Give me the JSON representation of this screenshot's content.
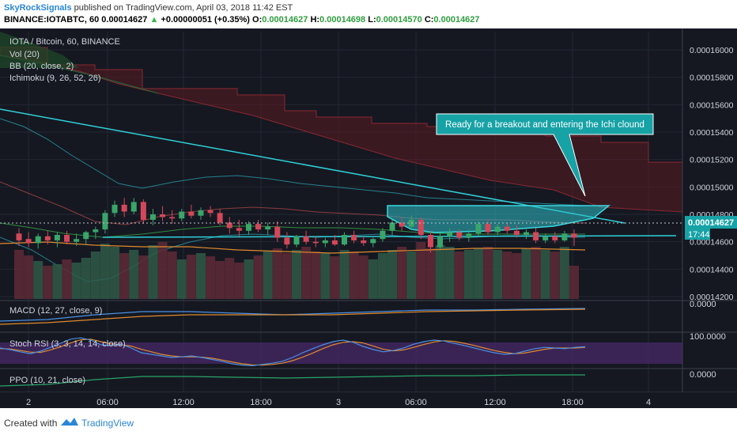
{
  "header": {
    "author": "SkyRockSignals",
    "published_text": "published on TradingView.com, April 03, 2018 11:42 EST",
    "symbol": "BINANCE:IOTABTC, 60",
    "price": "0.00014627",
    "change_arrow": "▲",
    "change": "+0.00000051 (+0.35%)",
    "o_label": "O:",
    "o_value": "0.00014627",
    "h_label": "H:",
    "h_value": "0.00014698",
    "l_label": "L:",
    "l_value": "0.00014570",
    "c_label": "C:",
    "c_value": "0.00014627"
  },
  "footer": {
    "created_with": "Created with",
    "brand": "TradingView"
  },
  "chart_data": {
    "type": "candlestick",
    "title": "IOTA / Bitcoin, 60, BINANCE",
    "indicators": [
      "Vol (20)",
      "BB (20, close, 2)",
      "Ichimoku (9, 26, 52, 26)"
    ],
    "y_ticks": [
      0.00016,
      0.000158,
      0.000156,
      0.000154,
      0.000152,
      0.00015,
      0.000148,
      0.000146,
      0.000144,
      0.000142
    ],
    "y_tick_labels": [
      "0.00016000",
      "0.00015800",
      "0.00015600",
      "0.00015400",
      "0.00015200",
      "0.00015000",
      "0.00014800",
      "0.00014600",
      "0.00014400",
      "0.00014200"
    ],
    "ylim": [
      0.0001415,
      0.0001615
    ],
    "x_tick_labels": [
      "2",
      "06:00",
      "12:00",
      "18:00",
      "3",
      "06:00",
      "12:00",
      "18:00",
      "4"
    ],
    "last_price_label": "0.00014627",
    "countdown_label": "17:44",
    "annotation": "Ready for a breakout and entering the Ichi clound",
    "candles": [
      {
        "o": 0.0001466,
        "h": 0.000147,
        "l": 0.0001457,
        "c": 0.0001461
      },
      {
        "o": 0.0001462,
        "h": 0.0001467,
        "l": 0.0001456,
        "c": 0.0001459
      },
      {
        "o": 0.0001459,
        "h": 0.0001466,
        "l": 0.0001455,
        "c": 0.0001464
      },
      {
        "o": 0.0001464,
        "h": 0.0001468,
        "l": 0.0001458,
        "c": 0.0001461
      },
      {
        "o": 0.0001461,
        "h": 0.0001467,
        "l": 0.0001456,
        "c": 0.0001465
      },
      {
        "o": 0.0001465,
        "h": 0.0001468,
        "l": 0.0001458,
        "c": 0.000146
      },
      {
        "o": 0.000146,
        "h": 0.0001466,
        "l": 0.0001457,
        "c": 0.0001462
      },
      {
        "o": 0.0001462,
        "h": 0.0001468,
        "l": 0.0001458,
        "c": 0.0001467
      },
      {
        "o": 0.0001467,
        "h": 0.0001471,
        "l": 0.0001462,
        "c": 0.0001469
      },
      {
        "o": 0.0001469,
        "h": 0.0001483,
        "l": 0.0001466,
        "c": 0.0001481
      },
      {
        "o": 0.0001481,
        "h": 0.000149,
        "l": 0.0001478,
        "c": 0.0001487
      },
      {
        "o": 0.0001487,
        "h": 0.0001492,
        "l": 0.0001478,
        "c": 0.0001482
      },
      {
        "o": 0.0001482,
        "h": 0.0001492,
        "l": 0.000148,
        "c": 0.0001489
      },
      {
        "o": 0.0001489,
        "h": 0.0001491,
        "l": 0.0001473,
        "c": 0.0001476
      },
      {
        "o": 0.0001476,
        "h": 0.0001484,
        "l": 0.0001472,
        "c": 0.000148
      },
      {
        "o": 0.000148,
        "h": 0.0001486,
        "l": 0.0001475,
        "c": 0.0001478
      },
      {
        "o": 0.0001478,
        "h": 0.0001483,
        "l": 0.0001473,
        "c": 0.0001477
      },
      {
        "o": 0.0001477,
        "h": 0.0001484,
        "l": 0.0001475,
        "c": 0.0001482
      },
      {
        "o": 0.0001482,
        "h": 0.0001487,
        "l": 0.0001477,
        "c": 0.0001479
      },
      {
        "o": 0.0001479,
        "h": 0.0001485,
        "l": 0.0001476,
        "c": 0.0001483
      },
      {
        "o": 0.0001483,
        "h": 0.0001486,
        "l": 0.0001478,
        "c": 0.0001481
      },
      {
        "o": 0.0001481,
        "h": 0.0001484,
        "l": 0.0001472,
        "c": 0.0001474
      },
      {
        "o": 0.0001474,
        "h": 0.0001478,
        "l": 0.0001466,
        "c": 0.000147
      },
      {
        "o": 0.000147,
        "h": 0.0001476,
        "l": 0.0001464,
        "c": 0.0001468
      },
      {
        "o": 0.0001468,
        "h": 0.0001475,
        "l": 0.0001465,
        "c": 0.0001473
      },
      {
        "o": 0.0001473,
        "h": 0.0001476,
        "l": 0.0001467,
        "c": 0.0001469
      },
      {
        "o": 0.0001469,
        "h": 0.0001474,
        "l": 0.0001465,
        "c": 0.0001471
      },
      {
        "o": 0.0001471,
        "h": 0.0001475,
        "l": 0.000146,
        "c": 0.0001463
      },
      {
        "o": 0.0001463,
        "h": 0.0001467,
        "l": 0.0001455,
        "c": 0.0001458
      },
      {
        "o": 0.0001458,
        "h": 0.0001465,
        "l": 0.0001456,
        "c": 0.0001464
      },
      {
        "o": 0.0001464,
        "h": 0.0001468,
        "l": 0.0001458,
        "c": 0.000146
      },
      {
        "o": 0.000146,
        "h": 0.0001464,
        "l": 0.0001456,
        "c": 0.0001459
      },
      {
        "o": 0.0001459,
        "h": 0.0001463,
        "l": 0.0001456,
        "c": 0.0001461
      },
      {
        "o": 0.0001461,
        "h": 0.0001465,
        "l": 0.0001457,
        "c": 0.0001458
      },
      {
        "o": 0.0001458,
        "h": 0.0001467,
        "l": 0.0001457,
        "c": 0.0001465
      },
      {
        "o": 0.0001465,
        "h": 0.0001468,
        "l": 0.0001459,
        "c": 0.0001461
      },
      {
        "o": 0.0001461,
        "h": 0.0001464,
        "l": 0.0001457,
        "c": 0.0001459
      },
      {
        "o": 0.0001459,
        "h": 0.0001463,
        "l": 0.0001456,
        "c": 0.0001462
      },
      {
        "o": 0.0001462,
        "h": 0.000147,
        "l": 0.000146,
        "c": 0.0001468
      },
      {
        "o": 0.0001468,
        "h": 0.0001476,
        "l": 0.0001465,
        "c": 0.0001474
      },
      {
        "o": 0.0001474,
        "h": 0.0001478,
        "l": 0.0001468,
        "c": 0.0001471
      },
      {
        "o": 0.0001471,
        "h": 0.0001479,
        "l": 0.0001469,
        "c": 0.0001476
      },
      {
        "o": 0.0001476,
        "h": 0.0001478,
        "l": 0.0001462,
        "c": 0.0001465
      },
      {
        "o": 0.0001465,
        "h": 0.0001468,
        "l": 0.0001452,
        "c": 0.0001456
      },
      {
        "o": 0.0001456,
        "h": 0.0001466,
        "l": 0.0001455,
        "c": 0.0001464
      },
      {
        "o": 0.0001464,
        "h": 0.000147,
        "l": 0.000146,
        "c": 0.0001467
      },
      {
        "o": 0.0001467,
        "h": 0.0001469,
        "l": 0.0001461,
        "c": 0.0001463
      },
      {
        "o": 0.0001463,
        "h": 0.0001469,
        "l": 0.000146,
        "c": 0.0001466
      },
      {
        "o": 0.0001466,
        "h": 0.0001475,
        "l": 0.0001464,
        "c": 0.0001473
      },
      {
        "o": 0.0001473,
        "h": 0.0001476,
        "l": 0.0001465,
        "c": 0.0001467
      },
      {
        "o": 0.0001467,
        "h": 0.0001473,
        "l": 0.0001465,
        "c": 0.0001471
      },
      {
        "o": 0.0001471,
        "h": 0.0001474,
        "l": 0.0001466,
        "c": 0.0001468
      },
      {
        "o": 0.0001468,
        "h": 0.0001472,
        "l": 0.0001463,
        "c": 0.0001465
      },
      {
        "o": 0.0001465,
        "h": 0.0001469,
        "l": 0.0001462,
        "c": 0.0001467
      },
      {
        "o": 0.0001467,
        "h": 0.000147,
        "l": 0.0001459,
        "c": 0.0001461
      },
      {
        "o": 0.0001461,
        "h": 0.0001466,
        "l": 0.0001459,
        "c": 0.0001464
      },
      {
        "o": 0.0001464,
        "h": 0.0001467,
        "l": 0.0001459,
        "c": 0.0001461
      },
      {
        "o": 0.0001461,
        "h": 0.0001468,
        "l": 0.000146,
        "c": 0.0001466
      },
      {
        "o": 0.0001466,
        "h": 0.0001469,
        "l": 0.0001457,
        "c": 0.0001463
      }
    ],
    "volume": [
      0.62,
      0.55,
      0.48,
      0.42,
      0.44,
      0.5,
      0.46,
      0.52,
      0.6,
      0.7,
      0.66,
      0.58,
      0.62,
      0.55,
      0.68,
      0.72,
      0.6,
      0.5,
      0.56,
      0.58,
      0.54,
      0.48,
      0.52,
      0.46,
      0.5,
      0.55,
      0.6,
      0.64,
      0.58,
      0.62,
      0.66,
      0.6,
      0.58,
      0.54,
      0.62,
      0.6,
      0.55,
      0.5,
      0.58,
      0.62,
      0.66,
      0.6,
      0.72,
      0.64,
      0.68,
      0.66,
      0.6,
      0.62,
      0.64,
      0.66,
      0.62,
      0.6,
      0.58,
      0.64,
      0.66,
      0.62,
      0.6,
      0.66,
      0.42
    ],
    "indicators_lower": {
      "macd": {
        "label": "MACD (12, 27, close, 9)",
        "tick": "0.0000"
      },
      "stoch_rsi": {
        "label": "Stoch RSI (3, 3, 14, 14, close)",
        "tick": "100.0000",
        "k": [
          60,
          55,
          48,
          42,
          50,
          62,
          75,
          88,
          92,
          85,
          70,
          68,
          72,
          60,
          45,
          40,
          35,
          30,
          32,
          35,
          30,
          24,
          18,
          10,
          6,
          4,
          8,
          12,
          18,
          30,
          45,
          58,
          70,
          80,
          85,
          78,
          65,
          55,
          48,
          52,
          60,
          72,
          80,
          85,
          82,
          75,
          68,
          60,
          52,
          45,
          40,
          42,
          50,
          58,
          62,
          60,
          58,
          62,
          64
        ],
        "d": [
          58,
          57,
          52,
          47,
          46,
          54,
          64,
          76,
          86,
          88,
          80,
          73,
          70,
          66,
          56,
          48,
          40,
          35,
          32,
          32,
          31,
          28,
          22,
          16,
          10,
          7,
          6,
          8,
          12,
          20,
          31,
          44,
          58,
          70,
          78,
          80,
          76,
          66,
          56,
          51,
          54,
          62,
          71,
          79,
          83,
          81,
          75,
          68,
          60,
          52,
          46,
          42,
          44,
          50,
          56,
          60,
          60,
          60,
          62
        ]
      },
      "ppo": {
        "label": "PPO (10, 21, close)",
        "tick": "0.0000"
      }
    }
  }
}
